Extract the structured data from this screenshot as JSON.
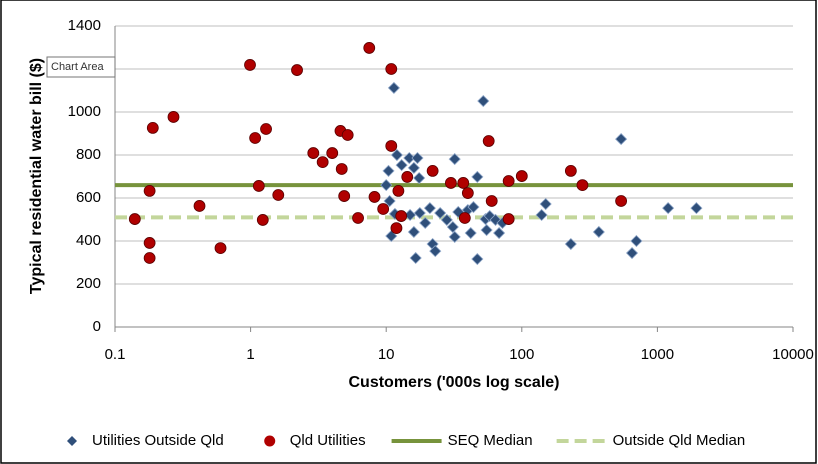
{
  "chart_data": {
    "type": "scatter",
    "tooltip": "Chart Area",
    "xlabel": "Customers ('000s log  scale)",
    "ylabel": "Typical residential water bill ($)",
    "xscale": "log",
    "grid": true,
    "xlim": [
      0.1,
      10000
    ],
    "xticks": [
      0.1,
      1,
      10,
      100,
      1000,
      10000
    ],
    "ylim": [
      0,
      1400
    ],
    "yticks": [
      0,
      200,
      400,
      600,
      800,
      1000,
      1200,
      1400
    ],
    "series": [
      {
        "name": "Utilities Outside Qld",
        "color": "#2f4f7a",
        "marker": "diamond",
        "x": [
          11.4,
          52,
          540,
          1940,
          1200,
          370,
          700,
          650,
          150,
          140,
          230,
          10,
          10.4,
          10.6,
          11.6,
          10.9,
          12,
          13,
          14.8,
          16,
          17,
          17.5,
          15,
          16,
          16.5,
          17.7,
          19.4,
          21,
          22,
          23,
          25,
          28,
          31,
          32,
          32,
          34,
          40,
          42,
          44,
          47,
          47,
          54,
          55,
          58,
          64,
          68,
          72
        ],
        "values": [
          1112,
          1051,
          874,
          553,
          553,
          442,
          400,
          344,
          572,
          521,
          386,
          660,
          726,
          586,
          526,
          423,
          800,
          753,
          786,
          740,
          786,
          693,
          521,
          442,
          321,
          530,
          484,
          553,
          386,
          353,
          530,
          498,
          465,
          419,
          781,
          535,
          544,
          437,
          558,
          698,
          316,
          502,
          451,
          516,
          498,
          437,
          484
        ]
      },
      {
        "name": "Qld Utilities",
        "color": "#b00000",
        "marker": "circle",
        "x": [
          0.14,
          0.19,
          0.18,
          0.18,
          0.18,
          0.27,
          0.42,
          0.6,
          0.99,
          1.08,
          1.15,
          1.23,
          1.3,
          1.6,
          2.2,
          2.9,
          3.4,
          4.0,
          4.6,
          4.7,
          5.2,
          4.9,
          6.2,
          7.5,
          8.2,
          9.5,
          10.9,
          10.9,
          11.9,
          12.3,
          12.9,
          14.3,
          22,
          30,
          37,
          38,
          40,
          57,
          60,
          80,
          80,
          100,
          230,
          280,
          540
        ],
        "values": [
          502,
          926,
          633,
          391,
          321,
          977,
          563,
          367,
          1219,
          879,
          656,
          498,
          921,
          614,
          1195,
          809,
          767,
          809,
          912,
          735,
          893,
          609,
          507,
          1298,
          605,
          549,
          1200,
          842,
          460,
          633,
          516,
          698,
          726,
          670,
          670,
          507,
          623,
          865,
          586,
          679,
          502,
          702,
          726,
          660,
          586
        ]
      }
    ],
    "reference_lines": [
      {
        "name": "SEQ Median",
        "color": "#77933c",
        "style": "solid",
        "value": 660
      },
      {
        "name": "Outside Qld Median",
        "color": "#c3d69b",
        "style": "dashed",
        "value": 510
      }
    ]
  }
}
